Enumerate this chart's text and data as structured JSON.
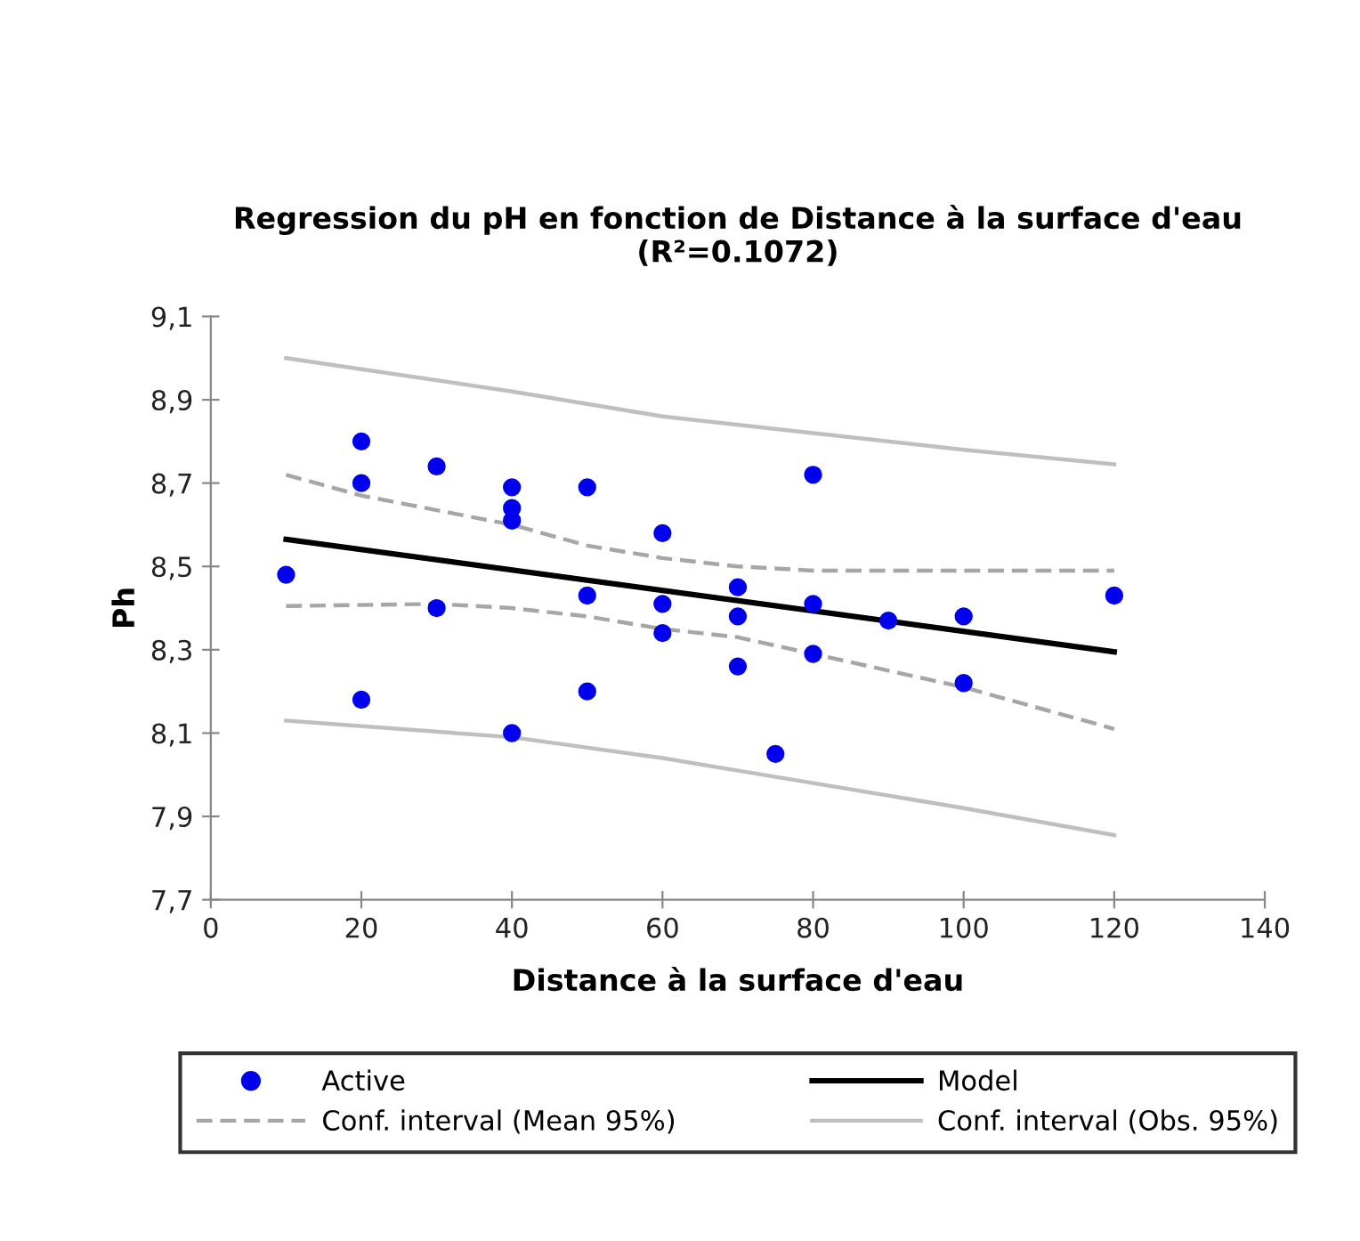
{
  "chart_data": {
    "type": "scatter",
    "title": "Regression du pH en fonction de Distance à la surface d'eau\n(R²=0.1072)",
    "xlabel": "Distance à la surface d'eau",
    "ylabel": "Ph",
    "xlim": [
      0,
      140
    ],
    "xticks": [
      0,
      20,
      40,
      60,
      80,
      100,
      120,
      140
    ],
    "ylim": [
      7.7,
      9.1
    ],
    "yticks": [
      {
        "value": 7.7,
        "label": "7,7"
      },
      {
        "value": 7.9,
        "label": "7,9"
      },
      {
        "value": 8.1,
        "label": "8,1"
      },
      {
        "value": 8.3,
        "label": "8,3"
      },
      {
        "value": 8.5,
        "label": "8,5"
      },
      {
        "value": 8.7,
        "label": "8,7"
      },
      {
        "value": 8.9,
        "label": "8,9"
      },
      {
        "value": 9.1,
        "label": "9,1"
      }
    ],
    "grid": false,
    "legend": "bottom",
    "series": [
      {
        "name": "Active",
        "marker": "circle",
        "color": "#0000ee",
        "x": [
          10,
          20,
          20,
          20,
          30,
          30,
          40,
          40,
          40,
          40,
          50,
          50,
          50,
          60,
          60,
          60,
          70,
          70,
          70,
          75,
          80,
          80,
          80,
          90,
          100,
          100,
          120
        ],
        "values": [
          8.48,
          8.8,
          8.7,
          8.18,
          8.74,
          8.4,
          8.69,
          8.64,
          8.61,
          8.1,
          8.69,
          8.43,
          8.2,
          8.58,
          8.41,
          8.34,
          8.45,
          8.38,
          8.26,
          8.05,
          8.72,
          8.41,
          8.29,
          8.37,
          8.38,
          8.22,
          8.43
        ]
      },
      {
        "name": "Model",
        "type": "line",
        "line_style": "solid",
        "color": "#000000",
        "x": [
          10,
          120
        ],
        "values": [
          8.565,
          8.295
        ]
      },
      {
        "name": "Conf. interval (Mean 95%)",
        "type": "line",
        "line_style": "dashed",
        "color": "#a6a6a6",
        "x": [
          10,
          20,
          40,
          50,
          60,
          70,
          80,
          100,
          120
        ],
        "values": [
          8.72,
          8.67,
          8.6,
          8.55,
          8.52,
          8.5,
          8.49,
          8.49,
          8.49
        ]
      },
      {
        "type": "line",
        "line_style": "dashed",
        "color": "#a6a6a6",
        "x": [
          10,
          30,
          40,
          50,
          60,
          70,
          80,
          100,
          120
        ],
        "values": [
          8.405,
          8.41,
          8.4,
          8.38,
          8.35,
          8.33,
          8.29,
          8.21,
          8.11
        ]
      },
      {
        "name": "Conf. interval (Obs. 95%)",
        "type": "line",
        "line_style": "solid",
        "color": "#bfbfbf",
        "x": [
          10,
          40,
          60,
          80,
          100,
          120
        ],
        "values": [
          9.0,
          8.92,
          8.86,
          8.82,
          8.78,
          8.745
        ]
      },
      {
        "type": "line",
        "line_style": "solid",
        "color": "#bfbfbf",
        "x": [
          10,
          40,
          60,
          80,
          100,
          120
        ],
        "values": [
          8.13,
          8.09,
          8.04,
          7.98,
          7.92,
          7.855
        ]
      }
    ]
  }
}
